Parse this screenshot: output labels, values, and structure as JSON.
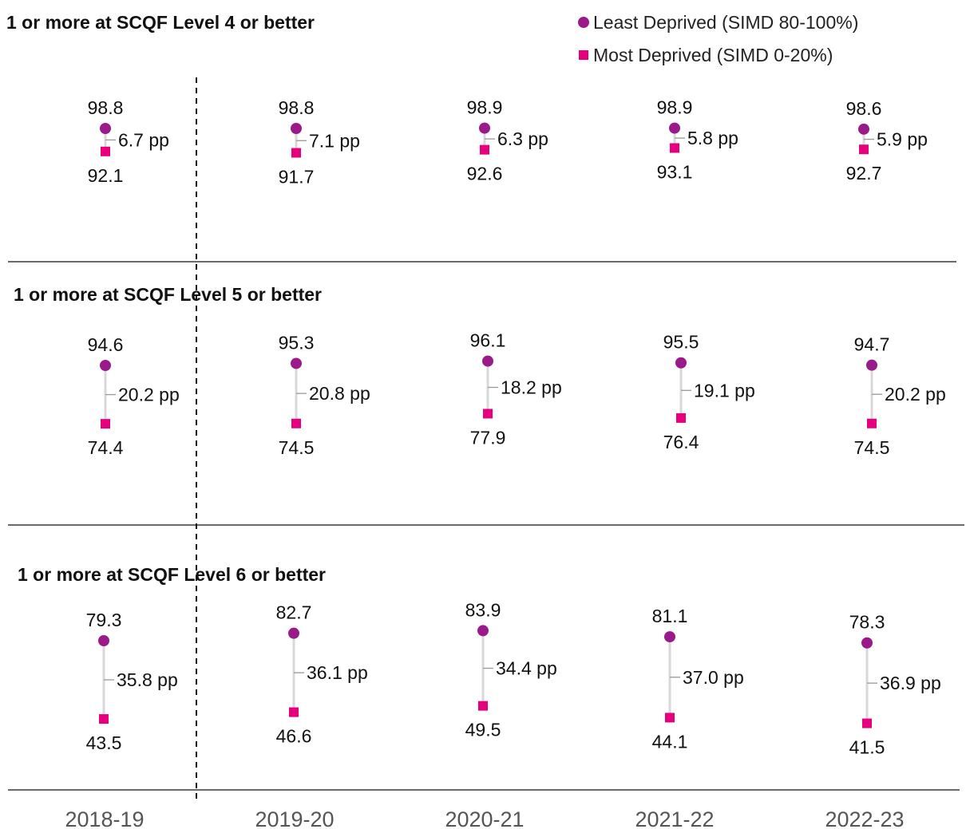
{
  "chart_data": {
    "type": "dumbbell",
    "categories": [
      "2018-19",
      "2019-20",
      "2020-21",
      "2021-22",
      "2022-23"
    ],
    "legend": {
      "placement": "top-right",
      "items": [
        {
          "label": "Least Deprived (SIMD 80-100%)",
          "marker": "circle",
          "color": "#9b1a8a"
        },
        {
          "label": "Most Deprived (SIMD 0-20%)",
          "marker": "square",
          "color": "#e6007e"
        }
      ]
    },
    "panels": [
      {
        "title": "1 or more at SCQF Level 4 or better",
        "least_deprived": [
          "98.8",
          "98.8",
          "98.9",
          "98.9",
          "98.6"
        ],
        "most_deprived": [
          "92.1",
          "91.7",
          "92.6",
          "93.1",
          "92.7"
        ],
        "gap_labels": [
          "6.7 pp",
          "7.1 pp",
          "6.3 pp",
          "5.8 pp",
          "5.9 pp"
        ]
      },
      {
        "title": "1 or more at SCQF Level 5 or better",
        "least_deprived": [
          "94.6",
          "95.3",
          "96.1",
          "95.5",
          "94.7"
        ],
        "most_deprived": [
          "74.4",
          "74.5",
          "77.9",
          "76.4",
          "74.5"
        ],
        "gap_labels": [
          "20.2 pp",
          "20.8 pp",
          "18.2 pp",
          "19.1 pp",
          "20.2 pp"
        ]
      },
      {
        "title": "1 or more at SCQF Level 6 or better",
        "least_deprived": [
          "79.3",
          "82.7",
          "83.9",
          "81.1",
          "78.3"
        ],
        "most_deprived": [
          "43.5",
          "46.6",
          "49.5",
          "44.1",
          "41.5"
        ],
        "gap_labels": [
          "35.8 pp",
          "36.1 pp",
          "34.4 pp",
          "37.0 pp",
          "36.9 pp"
        ]
      }
    ],
    "divider_after_category": "2018-19",
    "colors": {
      "least": "#9b1a8a",
      "most": "#e6007e",
      "connector": "#d8d8d8",
      "tick": "#999999"
    }
  }
}
